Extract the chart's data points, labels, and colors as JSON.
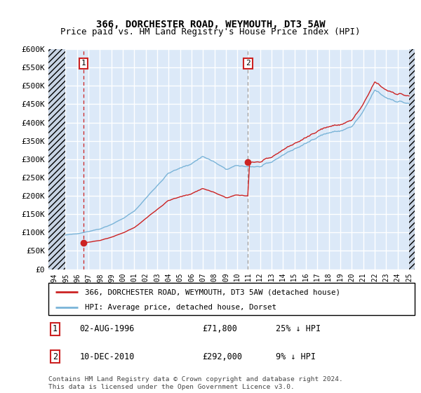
{
  "title": "366, DORCHESTER ROAD, WEYMOUTH, DT3 5AW",
  "subtitle": "Price paid vs. HM Land Registry's House Price Index (HPI)",
  "ylim": [
    0,
    600000
  ],
  "yticks": [
    0,
    50000,
    100000,
    150000,
    200000,
    250000,
    300000,
    350000,
    400000,
    450000,
    500000,
    550000,
    600000
  ],
  "ytick_labels": [
    "£0",
    "£50K",
    "£100K",
    "£150K",
    "£200K",
    "£250K",
    "£300K",
    "£350K",
    "£400K",
    "£450K",
    "£500K",
    "£550K",
    "£600K"
  ],
  "xlim_start": 1993.5,
  "xlim_end": 2025.5,
  "plot_bg_color": "#dce9f8",
  "hatch_color": "#c8d4e4",
  "grid_color": "#ffffff",
  "hpi_line_color": "#7ab4d8",
  "price_line_color": "#cc2222",
  "annotation_box_color": "#cc2222",
  "transaction1_x": 1996.58,
  "transaction1_y": 71800,
  "transaction2_x": 2010.94,
  "transaction2_y": 292000,
  "legend_line1": "366, DORCHESTER ROAD, WEYMOUTH, DT3 5AW (detached house)",
  "legend_line2": "HPI: Average price, detached house, Dorset",
  "table_row1": [
    "1",
    "02-AUG-1996",
    "£71,800",
    "25% ↓ HPI"
  ],
  "table_row2": [
    "2",
    "10-DEC-2010",
    "£292,000",
    "9% ↓ HPI"
  ],
  "footer": "Contains HM Land Registry data © Crown copyright and database right 2024.\nThis data is licensed under the Open Government Licence v3.0."
}
